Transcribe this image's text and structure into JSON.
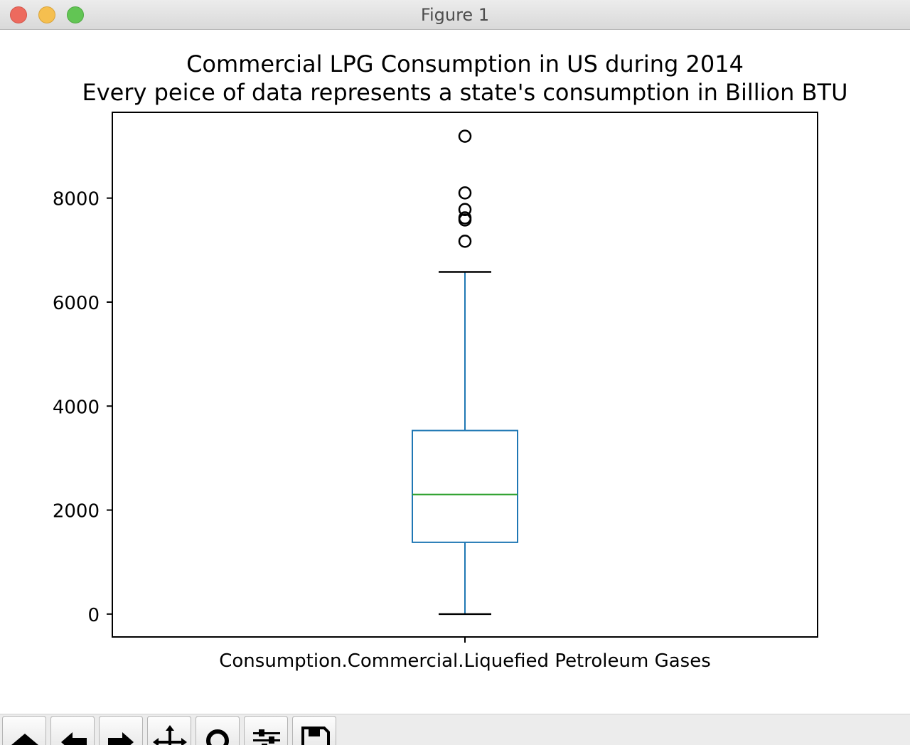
{
  "window": {
    "title": "Figure 1"
  },
  "toolbar": {
    "buttons": [
      {
        "name": "home",
        "icon": "home-icon"
      },
      {
        "name": "back",
        "icon": "arrow-left-icon"
      },
      {
        "name": "forward",
        "icon": "arrow-right-icon"
      },
      {
        "name": "pan",
        "icon": "move-icon"
      },
      {
        "name": "zoom",
        "icon": "magnifier-icon"
      },
      {
        "name": "configure-subplots",
        "icon": "sliders-icon"
      },
      {
        "name": "save",
        "icon": "floppy-disk-icon"
      }
    ]
  },
  "colors": {
    "box": "#1f77b4",
    "median": "#2ca02c",
    "whisker_cap": "#000000",
    "axes": "#000000"
  },
  "chart_data": {
    "type": "boxplot",
    "title": "Commercial LPG Consumption in US during 2014\nEvery peice of data represents a state's consumption in Billion BTU",
    "title_lines": [
      "Commercial LPG Consumption in US during 2014",
      "Every peice of data represents a state's consumption in Billion BTU"
    ],
    "categories": [
      "Consumption.Commercial.Liquefied Petroleum Gases"
    ],
    "xlabel": "",
    "ylabel": "",
    "ylim": [
      -440,
      9650
    ],
    "yticks": [
      0,
      2000,
      4000,
      6000,
      8000
    ],
    "ytick_labels": [
      "0",
      "2000",
      "4000",
      "6000",
      "8000"
    ],
    "grid": false,
    "boxes": [
      {
        "label": "Consumption.Commercial.Liquefied Petroleum Gases",
        "whisker_low": 0,
        "q1": 1380,
        "median": 2300,
        "q3": 3530,
        "whisker_high": 6580,
        "fliers": [
          7170,
          7580,
          7620,
          7780,
          8100,
          9190
        ]
      }
    ]
  }
}
